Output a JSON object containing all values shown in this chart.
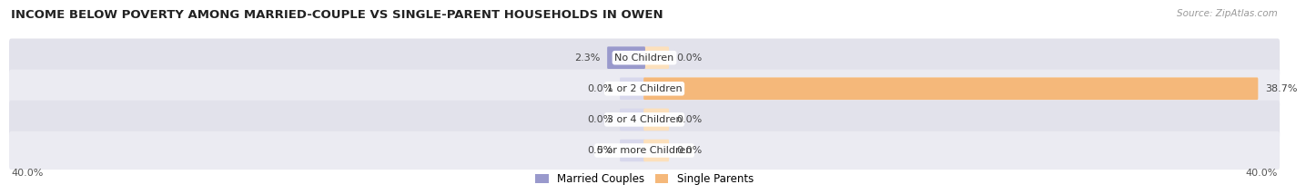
{
  "title": "INCOME BELOW POVERTY AMONG MARRIED-COUPLE VS SINGLE-PARENT HOUSEHOLDS IN OWEN",
  "source": "Source: ZipAtlas.com",
  "categories": [
    "No Children",
    "1 or 2 Children",
    "3 or 4 Children",
    "5 or more Children"
  ],
  "married_values": [
    2.3,
    0.0,
    0.0,
    0.0
  ],
  "single_values": [
    0.0,
    38.7,
    0.0,
    0.0
  ],
  "married_color": "#9999cc",
  "single_color": "#f5b87a",
  "bar_bg_married": "#d8d8ec",
  "bar_bg_single": "#fce0bc",
  "row_color_dark": "#e2e2eb",
  "row_color_light": "#ebebf2",
  "xlim": 40.0,
  "bar_height": 0.62,
  "background_color": "#ffffff",
  "title_fontsize": 9.5,
  "label_fontsize": 8.0,
  "category_fontsize": 8.0,
  "axis_label_fontsize": 8.0,
  "legend_fontsize": 8.5,
  "source_fontsize": 7.5,
  "min_bar_display": 1.5
}
